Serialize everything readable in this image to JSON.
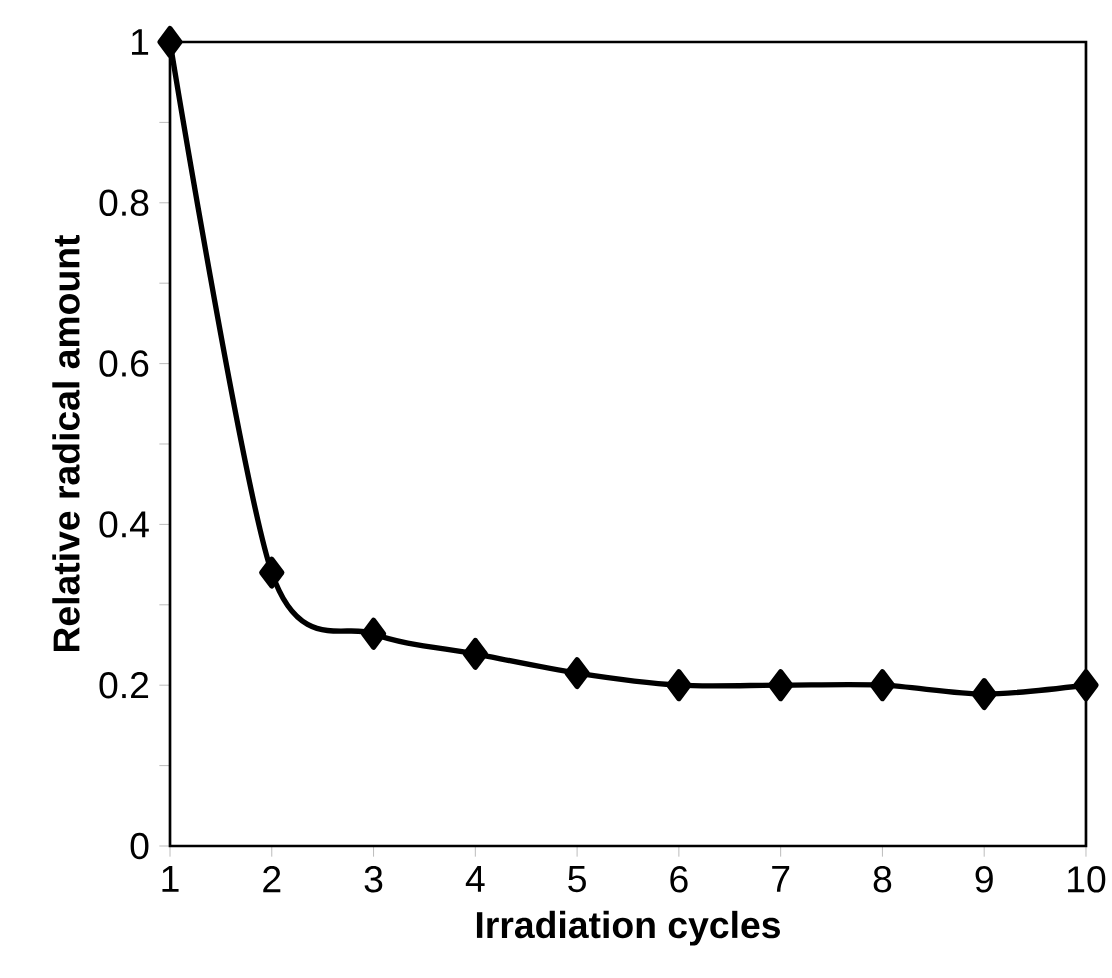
{
  "chart_data": {
    "type": "line",
    "xlabel": "Irradiation cycles",
    "ylabel": "Relative radical amount",
    "x": [
      1,
      2,
      3,
      4,
      5,
      6,
      7,
      8,
      9,
      10
    ],
    "series": [
      {
        "color": "#000000",
        "values": [
          1.0,
          0.34,
          0.264,
          0.239,
          0.215,
          0.2,
          0.2,
          0.2,
          0.189,
          0.2
        ]
      }
    ],
    "xlim": [
      1,
      10
    ],
    "xticks": [
      1,
      2,
      3,
      4,
      5,
      6,
      7,
      8,
      9,
      10
    ],
    "ylim": [
      0,
      1
    ],
    "yticks": [
      0,
      {
        "value": 0.1,
        "label": null
      },
      0.2,
      {
        "value": 0.3,
        "label": null
      },
      0.4,
      {
        "value": 0.5,
        "label": null
      },
      0.6,
      {
        "value": 0.7,
        "label": null
      },
      0.8,
      {
        "value": 0.9,
        "label": null
      },
      1
    ],
    "marker": "diamond",
    "line_style": "solid",
    "grid": false
  }
}
